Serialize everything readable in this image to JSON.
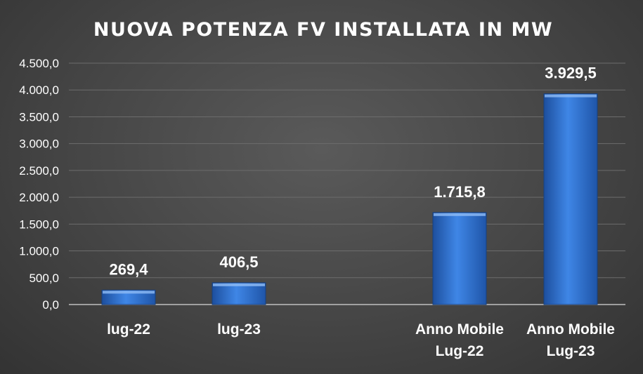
{
  "colors": {
    "text": "#ffffff",
    "bar": "#2f6fd0",
    "grid": "#6c6c6c",
    "axis": "#bfbfbf"
  },
  "chart_data": {
    "type": "bar",
    "title": "NUOVA POTENZA FV INSTALLATA IN MW",
    "categories": [
      [
        "lug-22"
      ],
      [
        "lug-23"
      ],
      [
        "Anno Mobile",
        "Lug-22"
      ],
      [
        "Anno Mobile",
        "Lug-23"
      ]
    ],
    "values": [
      269.4,
      406.5,
      1715.8,
      3929.5
    ],
    "value_labels": [
      "269,4",
      "406,5",
      "1.715,8",
      "3.929,5"
    ],
    "yticks": [
      0,
      500,
      1000,
      1500,
      2000,
      2500,
      3000,
      3500,
      4000,
      4500
    ],
    "ytick_labels": [
      "0,0",
      "500,0",
      "1.000,0",
      "1.500,0",
      "2.000,0",
      "2.500,0",
      "3.000,0",
      "3.500,0",
      "4.000,0",
      "4.500,0"
    ],
    "ylim": [
      0,
      4500
    ],
    "grid": true,
    "legend": "none"
  }
}
